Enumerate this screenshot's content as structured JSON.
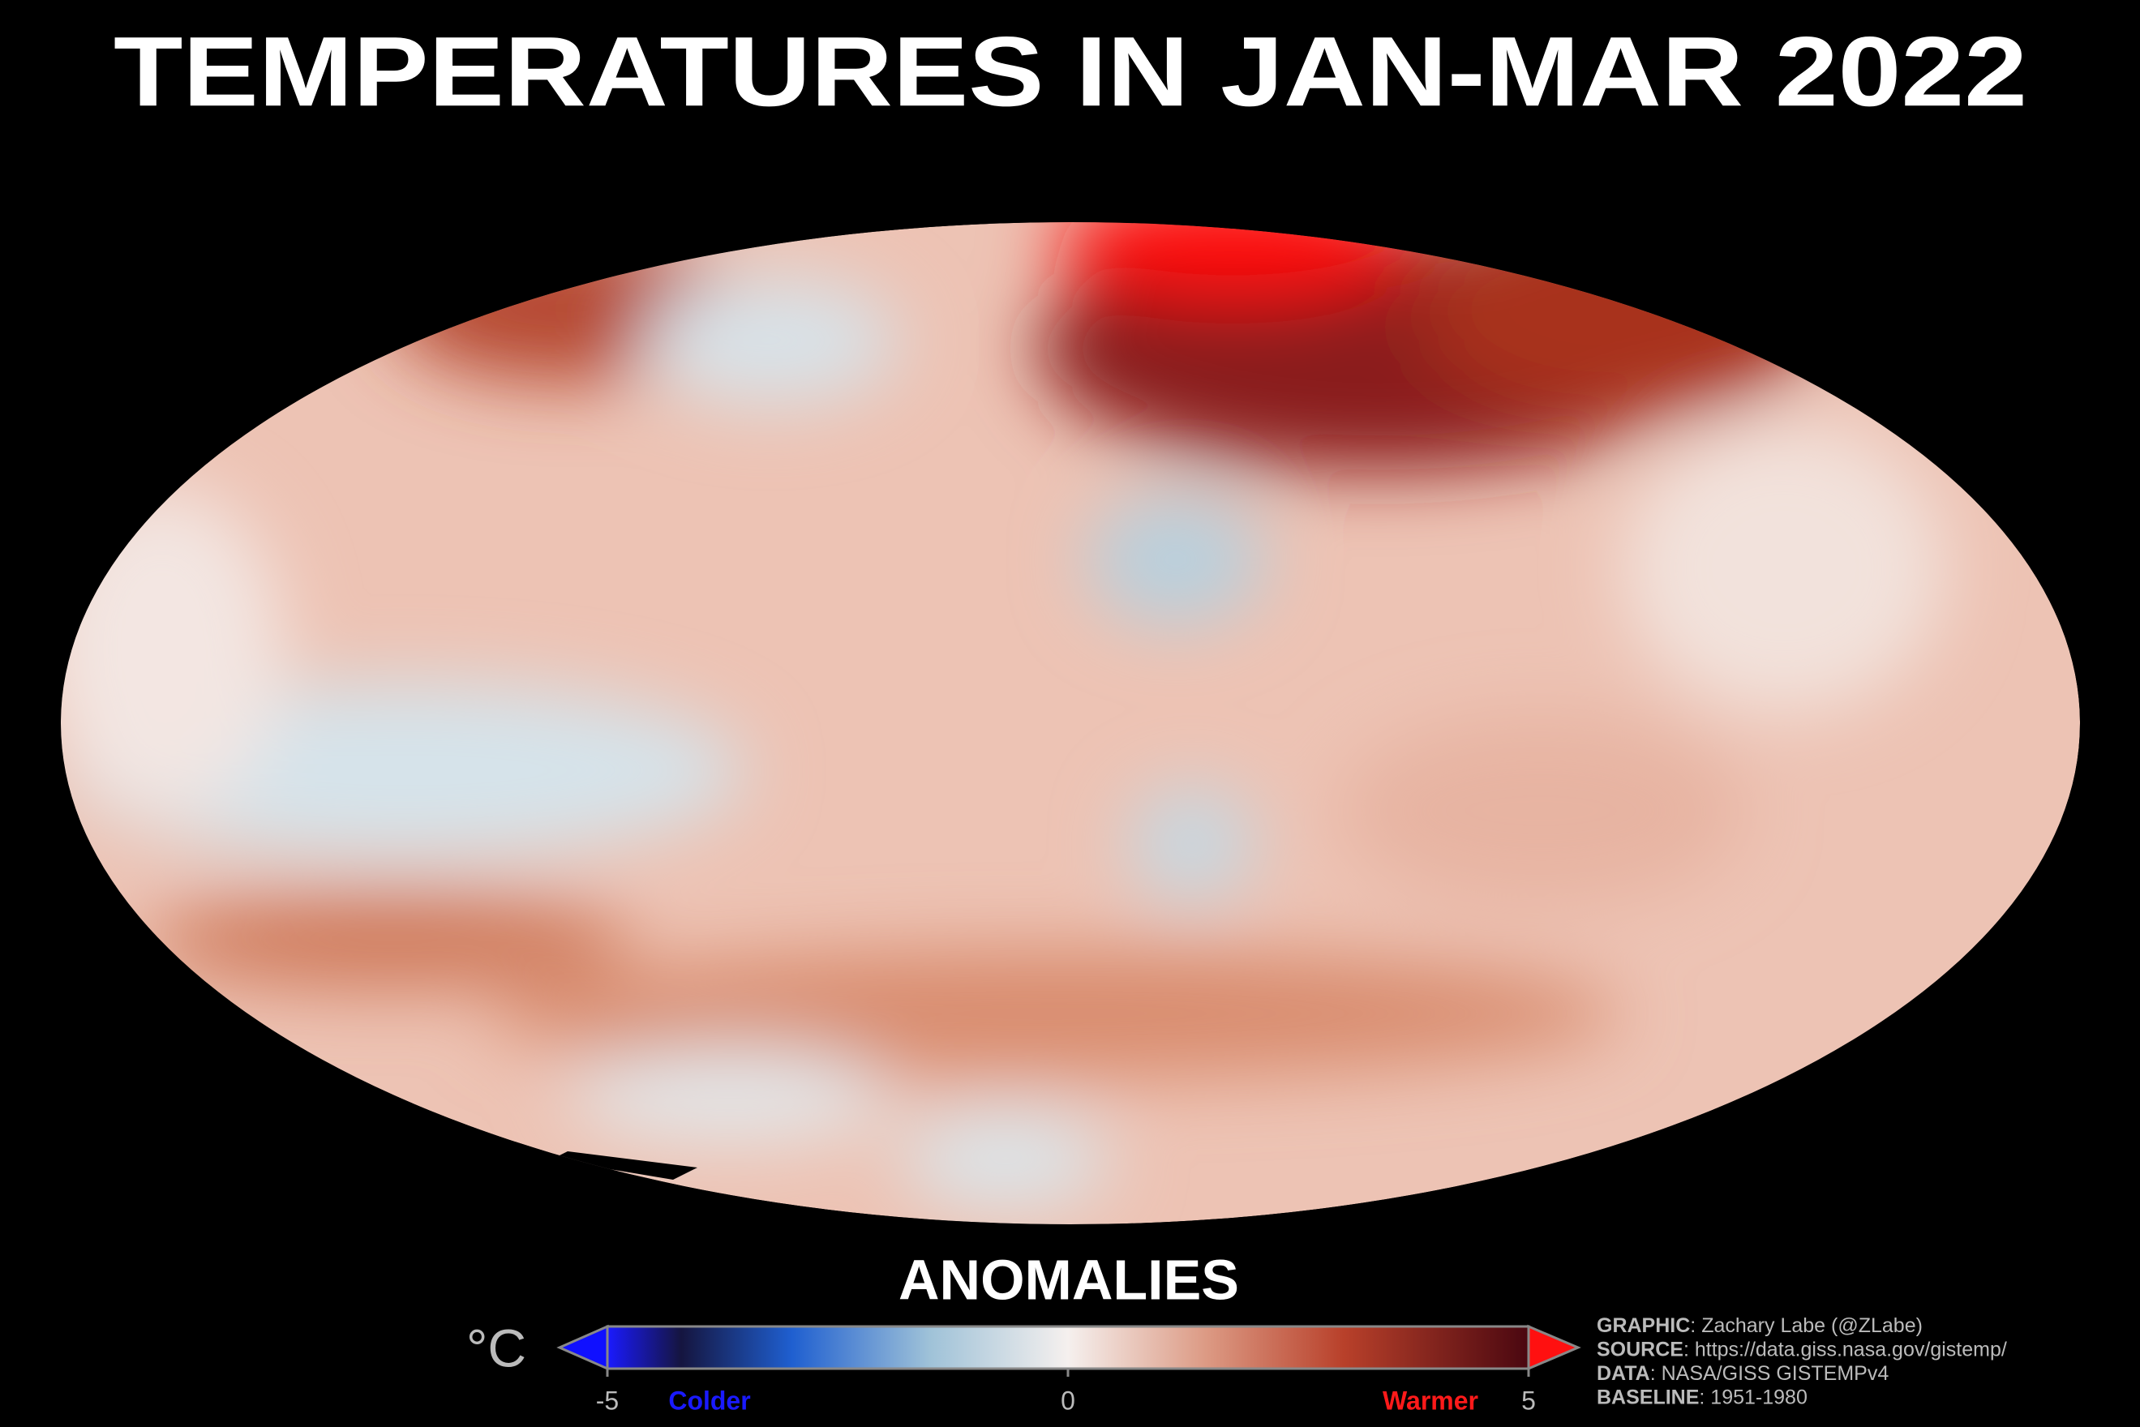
{
  "title": "TEMPERATURES IN JAN-MAR 2022",
  "colorbar": {
    "label": "ANOMALIES",
    "unit": "°C",
    "lim": [
      -5,
      5
    ],
    "ticks": [
      -5,
      0,
      5
    ],
    "low_label": "Colder",
    "high_label": "Warmer"
  },
  "credits": [
    {
      "key": "GRAPHIC",
      "text": ": Zachary Labe (@ZLabe)"
    },
    {
      "key": "SOURCE",
      "text": ": https://data.giss.nasa.gov/gistemp/"
    },
    {
      "key": "DATA",
      "text": ": NASA/GISS GISTEMPv4"
    },
    {
      "key": "BASELINE",
      "text": ": 1951-1980"
    }
  ]
}
